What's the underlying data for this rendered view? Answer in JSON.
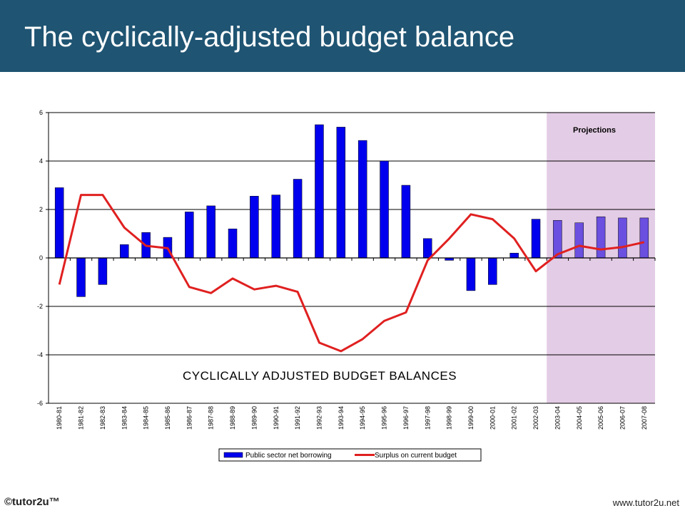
{
  "header": {
    "title": "The cyclically-adjusted budget balance",
    "background_color": "#1f5472"
  },
  "footer": {
    "copyright": "©tutor2u™",
    "url": "www.tutor2u.net"
  },
  "chart_data": {
    "type": "bar",
    "title": "CYCLICALLY ADJUSTED BUDGET BALANCES",
    "xlabel": "",
    "ylabel": "",
    "ylim": [
      -6,
      6
    ],
    "yticks": [
      6,
      4,
      2,
      0,
      -2,
      -4,
      -6
    ],
    "grid": true,
    "legend_position": "bottom",
    "annotation": "Projections",
    "projection_start": "2003-04",
    "categories": [
      "1980-81",
      "1981-82",
      "1982-83",
      "1983-84",
      "1984-85",
      "1985-86",
      "1986-87",
      "1987-88",
      "1988-89",
      "1989-90",
      "1990-91",
      "1991-92",
      "1992-93",
      "1993-94",
      "1994-95",
      "1995-96",
      "1996-97",
      "1997-98",
      "1998-99",
      "1999-00",
      "2000-01",
      "2001-02",
      "2002-03",
      "2003-04",
      "2004-05",
      "2005-06",
      "2006-07",
      "2007-08"
    ],
    "series": [
      {
        "name": "Public sector net borrowing",
        "type": "bar",
        "color": "#0000ee",
        "projection_color": "#6a4fe0",
        "values": [
          2.9,
          -1.6,
          -1.1,
          0.55,
          1.05,
          0.85,
          1.9,
          2.15,
          1.2,
          2.55,
          2.6,
          3.25,
          5.5,
          5.4,
          4.85,
          4.0,
          3.0,
          0.8,
          -0.1,
          -1.35,
          -1.1,
          0.2,
          1.6,
          1.55,
          1.45,
          1.7,
          1.65,
          1.65
        ]
      },
      {
        "name": "Surplus on current budget",
        "type": "line",
        "color": "#e02020",
        "values": [
          -1.1,
          2.6,
          2.6,
          1.25,
          0.5,
          0.4,
          -1.2,
          -1.45,
          -0.85,
          -1.3,
          -1.15,
          -1.4,
          -3.5,
          -3.85,
          -3.35,
          -2.6,
          -2.25,
          -0.1,
          0.8,
          1.8,
          1.6,
          0.8,
          -0.55,
          0.15,
          0.5,
          0.35,
          0.45,
          0.65
        ]
      }
    ]
  }
}
